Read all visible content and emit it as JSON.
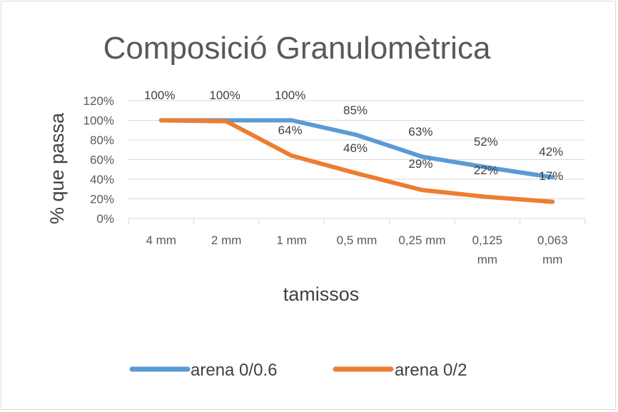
{
  "chart_data": {
    "type": "line",
    "title": "Composició Granulomètrica",
    "xlabel": "tamissos",
    "ylabel": "% que passa",
    "categories": [
      "4 mm",
      "2 mm",
      "1 mm",
      "0,5 mm",
      "0,25 mm",
      "0,125 mm",
      "0,063 mm"
    ],
    "y_ticks": [
      "0%",
      "20%",
      "40%",
      "60%",
      "80%",
      "100%",
      "120%"
    ],
    "ylim": [
      0,
      120
    ],
    "grid": "horizontal",
    "legend_position": "bottom",
    "series": [
      {
        "name": "arena 0/0.6",
        "color": "#5b9bd5",
        "values": [
          100,
          100,
          100,
          85,
          63,
          52,
          42
        ],
        "labels": [
          "100%",
          "100%",
          "100%",
          "85%",
          "63%",
          "52%",
          "42%"
        ]
      },
      {
        "name": "arena 0/2",
        "color": "#ed7d31",
        "values": [
          100,
          99,
          64,
          46,
          29,
          22,
          17
        ],
        "labels": [
          "",
          "",
          "64%",
          "46%",
          "29%",
          "22%",
          "17%"
        ]
      }
    ]
  }
}
